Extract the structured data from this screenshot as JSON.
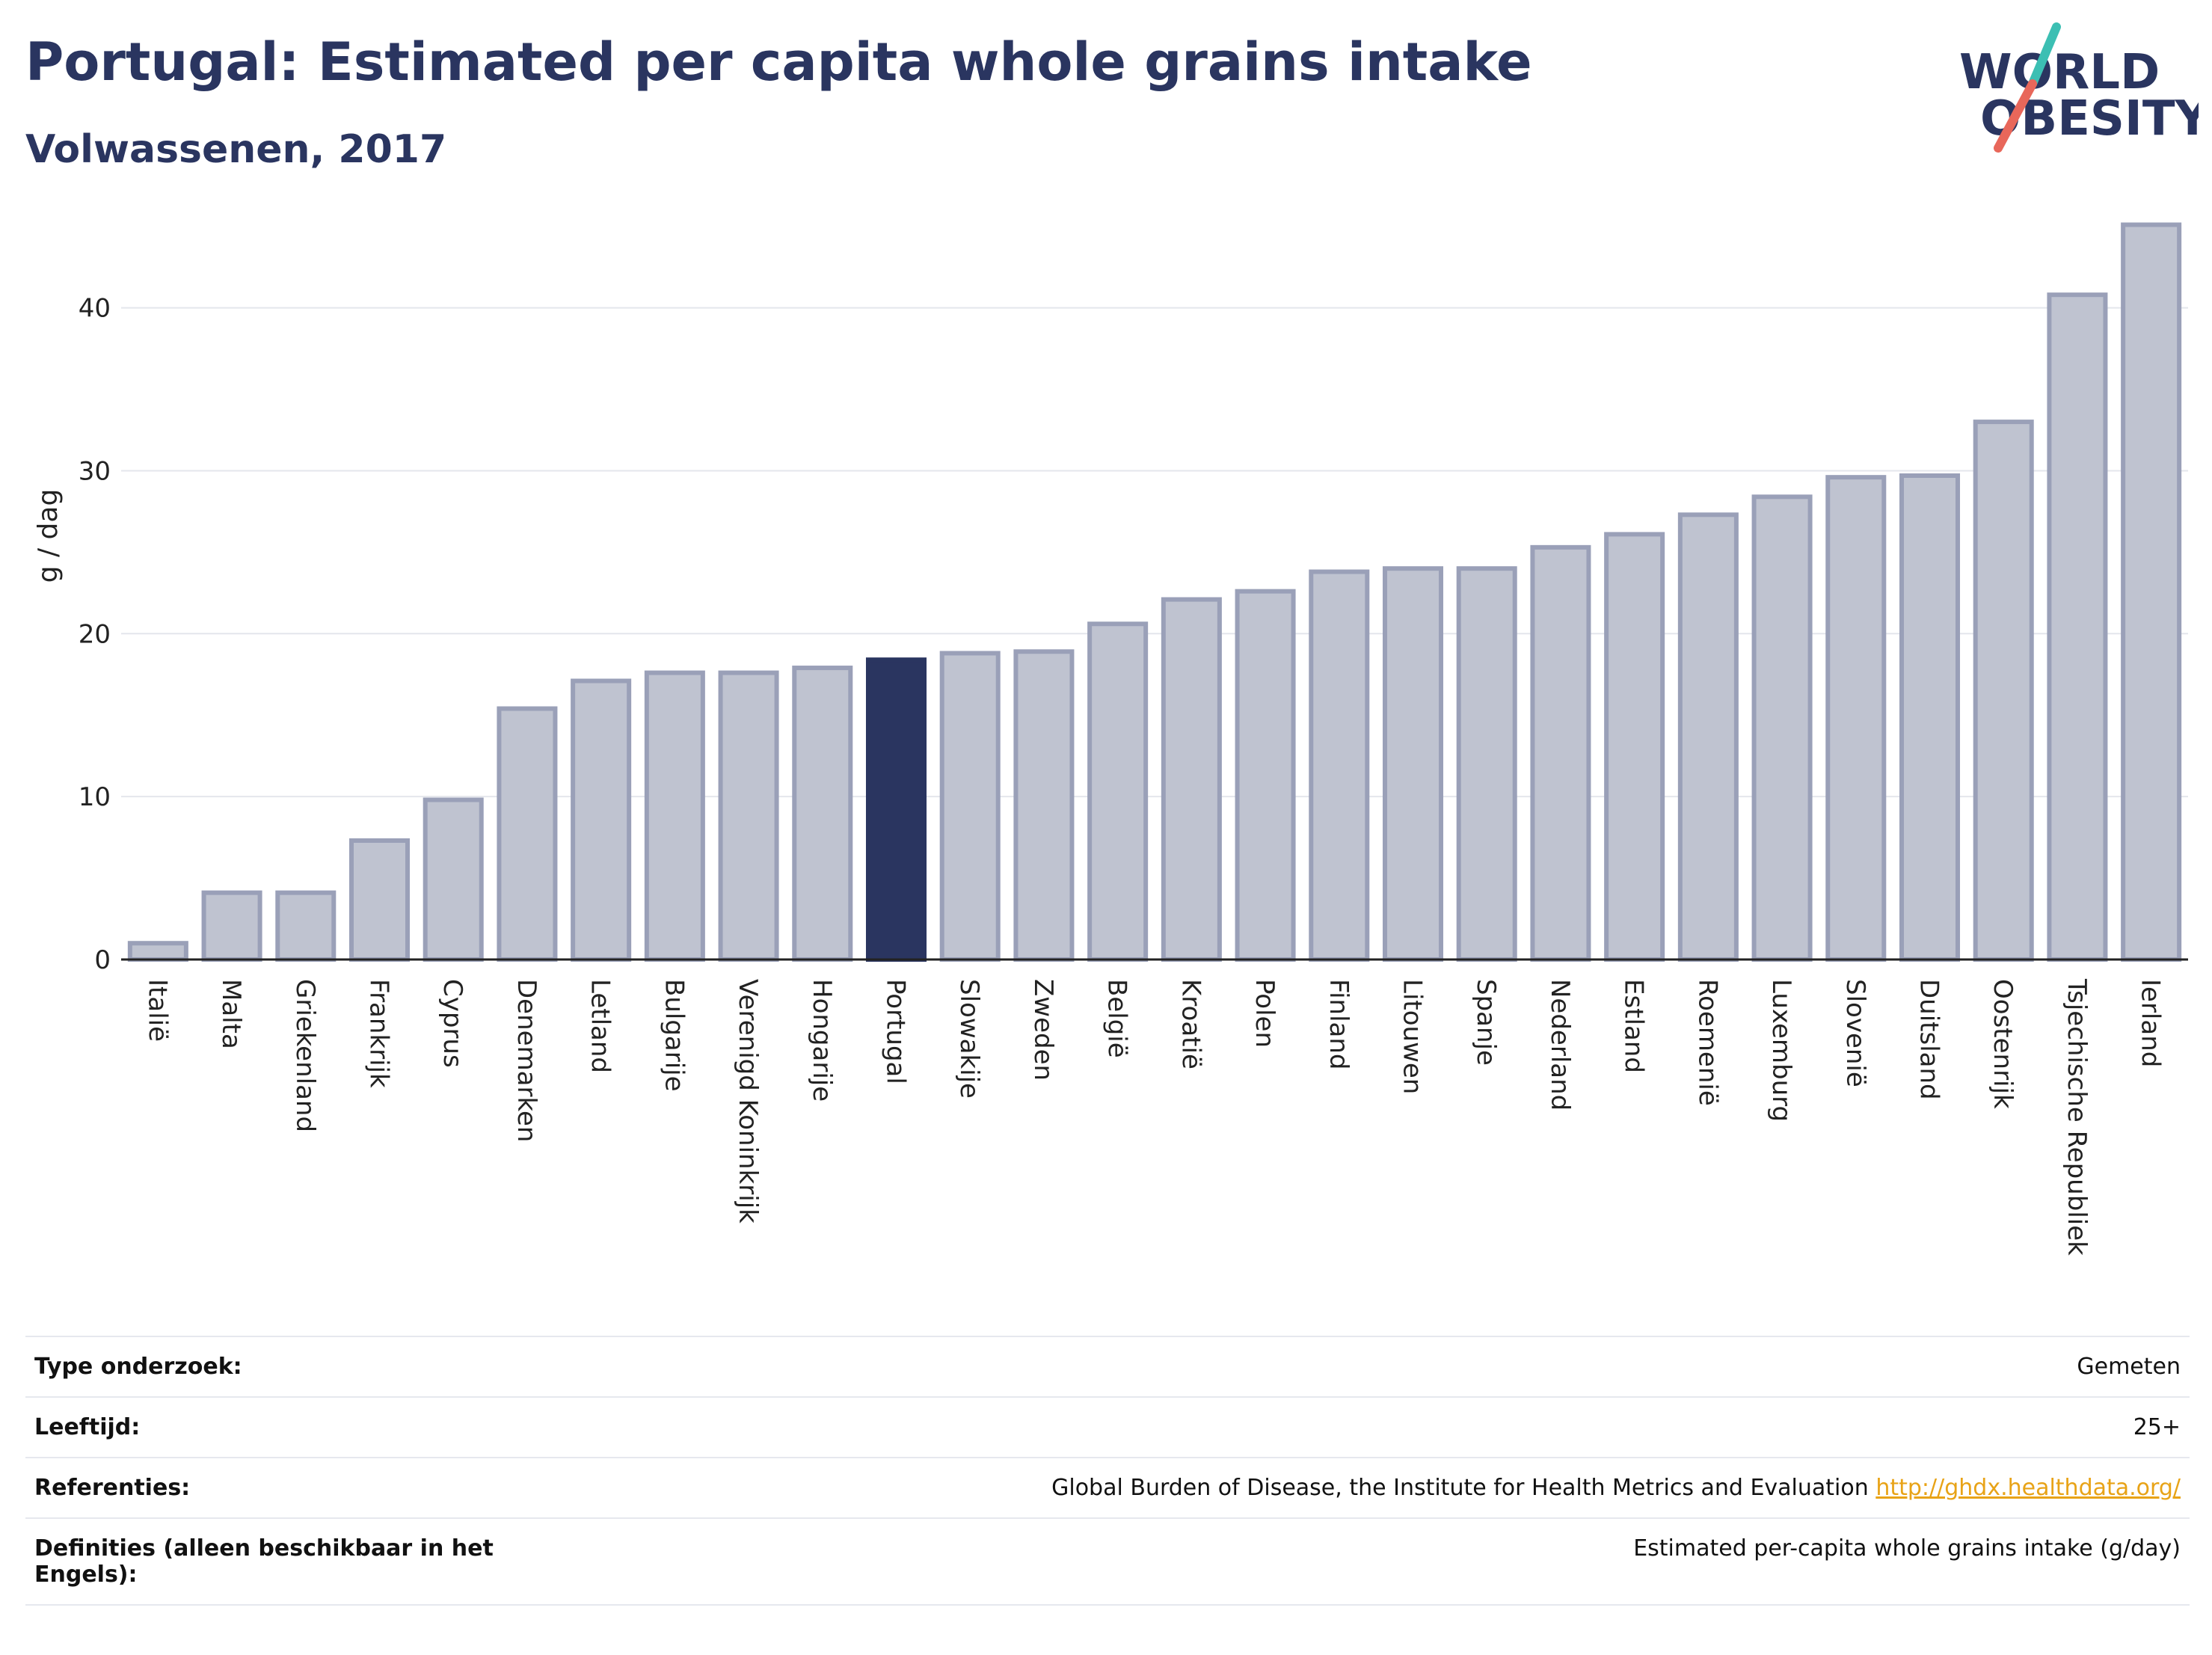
{
  "header": {
    "title": "Portugal: Estimated per capita whole grains intake",
    "subtitle": "Volwassenen, 2017"
  },
  "logo": {
    "line1": "WORLD",
    "line2": "OBESITY",
    "text_color": "#2a3560",
    "accent_teal": "#3cbfb3",
    "accent_red": "#e8675a"
  },
  "chart_data": {
    "type": "bar",
    "title": "",
    "xlabel": "",
    "ylabel": "g / dag",
    "ylim": [
      0,
      46.5
    ],
    "yticks": [
      0,
      10,
      20,
      30,
      40
    ],
    "grid": true,
    "highlight": "Portugal",
    "colors": {
      "bar": "#bfc3d0",
      "bar_border": "#9aa0b8",
      "highlight": "#2a3560",
      "grid": "#e4e6ec"
    },
    "categories": [
      "Italië",
      "Malta",
      "Griekenland",
      "Frankrijk",
      "Cyprus",
      "Denemarken",
      "Letland",
      "Bulgarije",
      "Verenigd Koninkrijk",
      "Hongarije",
      "Portugal",
      "Slowakije",
      "Zweden",
      "België",
      "Kroatië",
      "Polen",
      "Finland",
      "Litouwen",
      "Spanje",
      "Nederland",
      "Estland",
      "Roemenië",
      "Luxemburg",
      "Slovenië",
      "Duitsland",
      "Oostenrijk",
      "Tsjechische Republiek",
      "Ierland"
    ],
    "values": [
      1.0,
      4.1,
      4.1,
      7.3,
      9.8,
      15.4,
      17.1,
      17.6,
      17.6,
      17.9,
      18.4,
      18.8,
      18.9,
      20.6,
      22.1,
      22.6,
      23.8,
      24.0,
      24.0,
      25.3,
      26.1,
      27.3,
      28.4,
      29.6,
      29.7,
      33.0,
      40.8,
      45.1
    ]
  },
  "info": {
    "rows": [
      {
        "label": "Type onderzoek:",
        "value": "Gemeten"
      },
      {
        "label": "Leeftijd:",
        "value": "25+"
      },
      {
        "label": "Referenties:",
        "value": "Global Burden of Disease, the Institute for Health Metrics and Evaluation",
        "link": "http://ghdx.healthdata.org/"
      },
      {
        "label": "Definities (alleen beschikbaar in het Engels):",
        "value": "Estimated per-capita whole grains intake (g/day)"
      }
    ]
  }
}
